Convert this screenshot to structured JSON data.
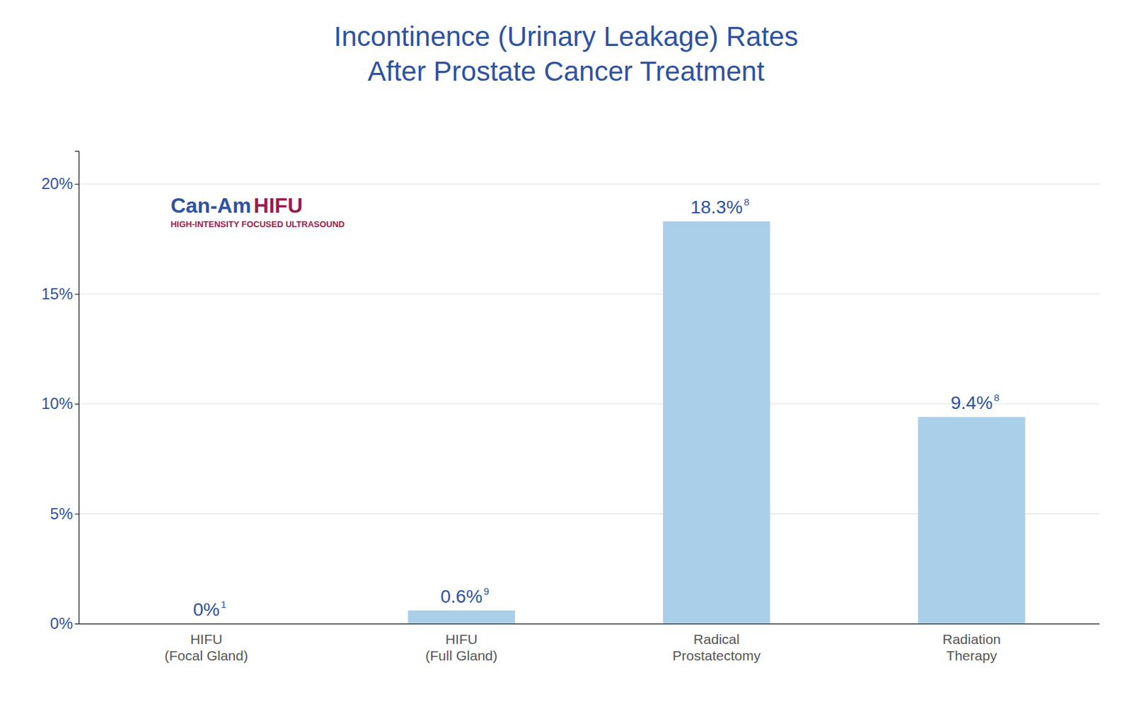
{
  "chart_data": {
    "type": "bar",
    "title": "Incontinence (Urinary Leakage) Rates\nAfter Prostate Cancer Treatment",
    "categories": [
      "HIFU\n(Focal Gland)",
      "HIFU\n(Full Gland)",
      "Radical\nProstatectomy",
      "Radiation\nTherapy"
    ],
    "values": [
      0.0,
      0.6,
      18.3,
      9.4
    ],
    "value_labels": [
      "0%",
      "0.6%",
      "18.3%",
      "9.4%"
    ],
    "label_superscripts": [
      "1",
      "9",
      "8",
      "8"
    ],
    "data_labels": true,
    "color": "#AACFE8",
    "ylim": [
      0,
      21.5
    ],
    "yticks": [
      {
        "value": 0,
        "label": "0%"
      },
      {
        "value": 5,
        "label": "5%"
      },
      {
        "value": 10,
        "label": "10%"
      },
      {
        "value": 15,
        "label": "15%"
      },
      {
        "value": 20,
        "label": "20%"
      }
    ],
    "grid": true,
    "annotations": [
      {
        "text": "Can-Am",
        "color": "#2E52A0"
      },
      {
        "text": "HIFU",
        "color": "#9B1B4B"
      },
      {
        "text": "HIGH-INTENSITY FOCUSED ULTRASOUND",
        "color": "#9B1B4B"
      }
    ]
  }
}
